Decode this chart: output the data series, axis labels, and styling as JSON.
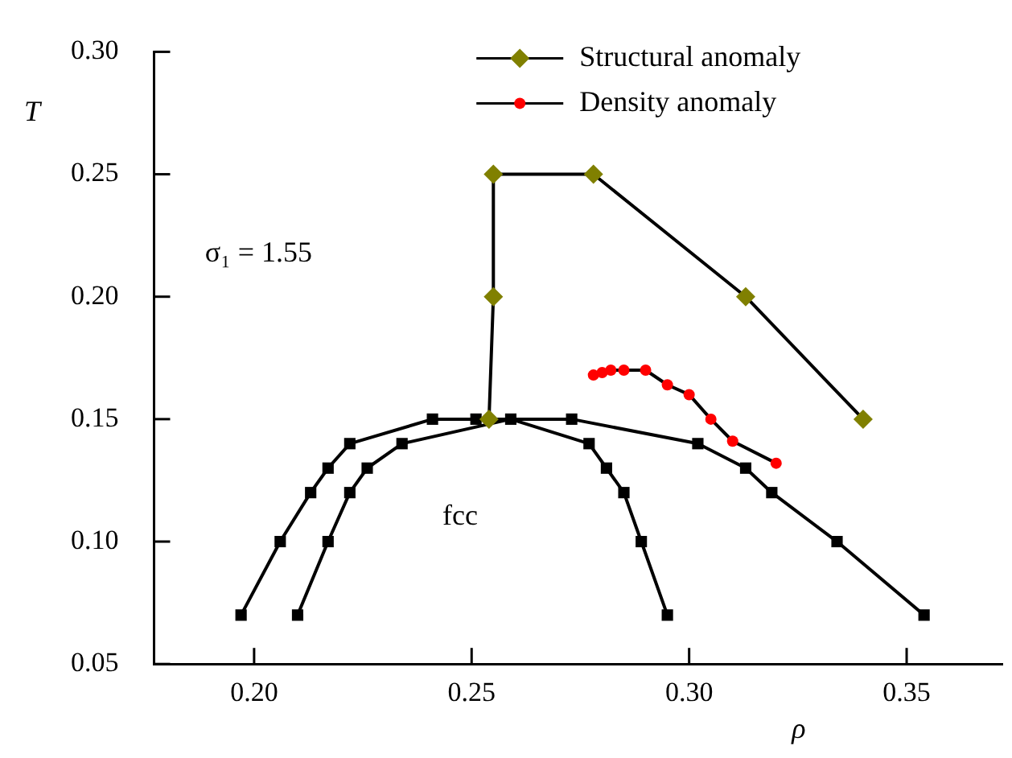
{
  "chart_data": {
    "type": "line",
    "xlabel": "ρ",
    "ylabel": "T",
    "xlim": [
      0.177,
      0.372
    ],
    "ylim": [
      0.05,
      0.3
    ],
    "xticks": [
      {
        "value": 0.2,
        "label": "0.20"
      },
      {
        "value": 0.25,
        "label": "0.25"
      },
      {
        "value": 0.3,
        "label": "0.30"
      },
      {
        "value": 0.35,
        "label": "0.35"
      }
    ],
    "yticks": [
      {
        "value": 0.05,
        "label": "0.05"
      },
      {
        "value": 0.1,
        "label": "0.10"
      },
      {
        "value": 0.15,
        "label": "0.15"
      },
      {
        "value": 0.2,
        "label": "0.20"
      },
      {
        "value": 0.25,
        "label": "0.25"
      },
      {
        "value": 0.3,
        "label": "0.30"
      }
    ],
    "grid": false,
    "legend": "top",
    "line_style": "solid",
    "annotations": [
      "σ₁ = 1.55",
      "fcc"
    ],
    "series": [
      {
        "color": "#000000",
        "marker": "square",
        "x": [
          0.197,
          0.206,
          0.213,
          0.217,
          0.222,
          0.241,
          0.251,
          0.273,
          0.302,
          0.313,
          0.319,
          0.334,
          0.354
        ],
        "values": [
          0.07,
          0.1,
          0.12,
          0.13,
          0.14,
          0.15,
          0.15,
          0.15,
          0.14,
          0.13,
          0.12,
          0.1,
          0.07
        ]
      },
      {
        "color": "#000000",
        "marker": "square",
        "x": [
          0.21,
          0.217,
          0.222,
          0.226,
          0.234,
          0.259,
          0.277,
          0.281,
          0.285,
          0.289,
          0.295
        ],
        "values": [
          0.07,
          0.1,
          0.12,
          0.13,
          0.14,
          0.15,
          0.14,
          0.13,
          0.12,
          0.1,
          0.07
        ]
      },
      {
        "name": "Structural anomaly",
        "color": "#808000",
        "marker": "diamond",
        "x": [
          0.254,
          0.255,
          0.255,
          0.278,
          0.313,
          0.34
        ],
        "values": [
          0.15,
          0.2,
          0.25,
          0.25,
          0.2,
          0.15
        ]
      },
      {
        "name": "Density anomaly",
        "color": "#ff0000",
        "marker": "circle",
        "x": [
          0.278,
          0.28,
          0.282,
          0.285,
          0.29,
          0.295,
          0.3,
          0.305,
          0.31,
          0.32
        ],
        "values": [
          0.168,
          0.169,
          0.17,
          0.17,
          0.17,
          0.164,
          0.16,
          0.15,
          0.141,
          0.132
        ]
      }
    ]
  }
}
